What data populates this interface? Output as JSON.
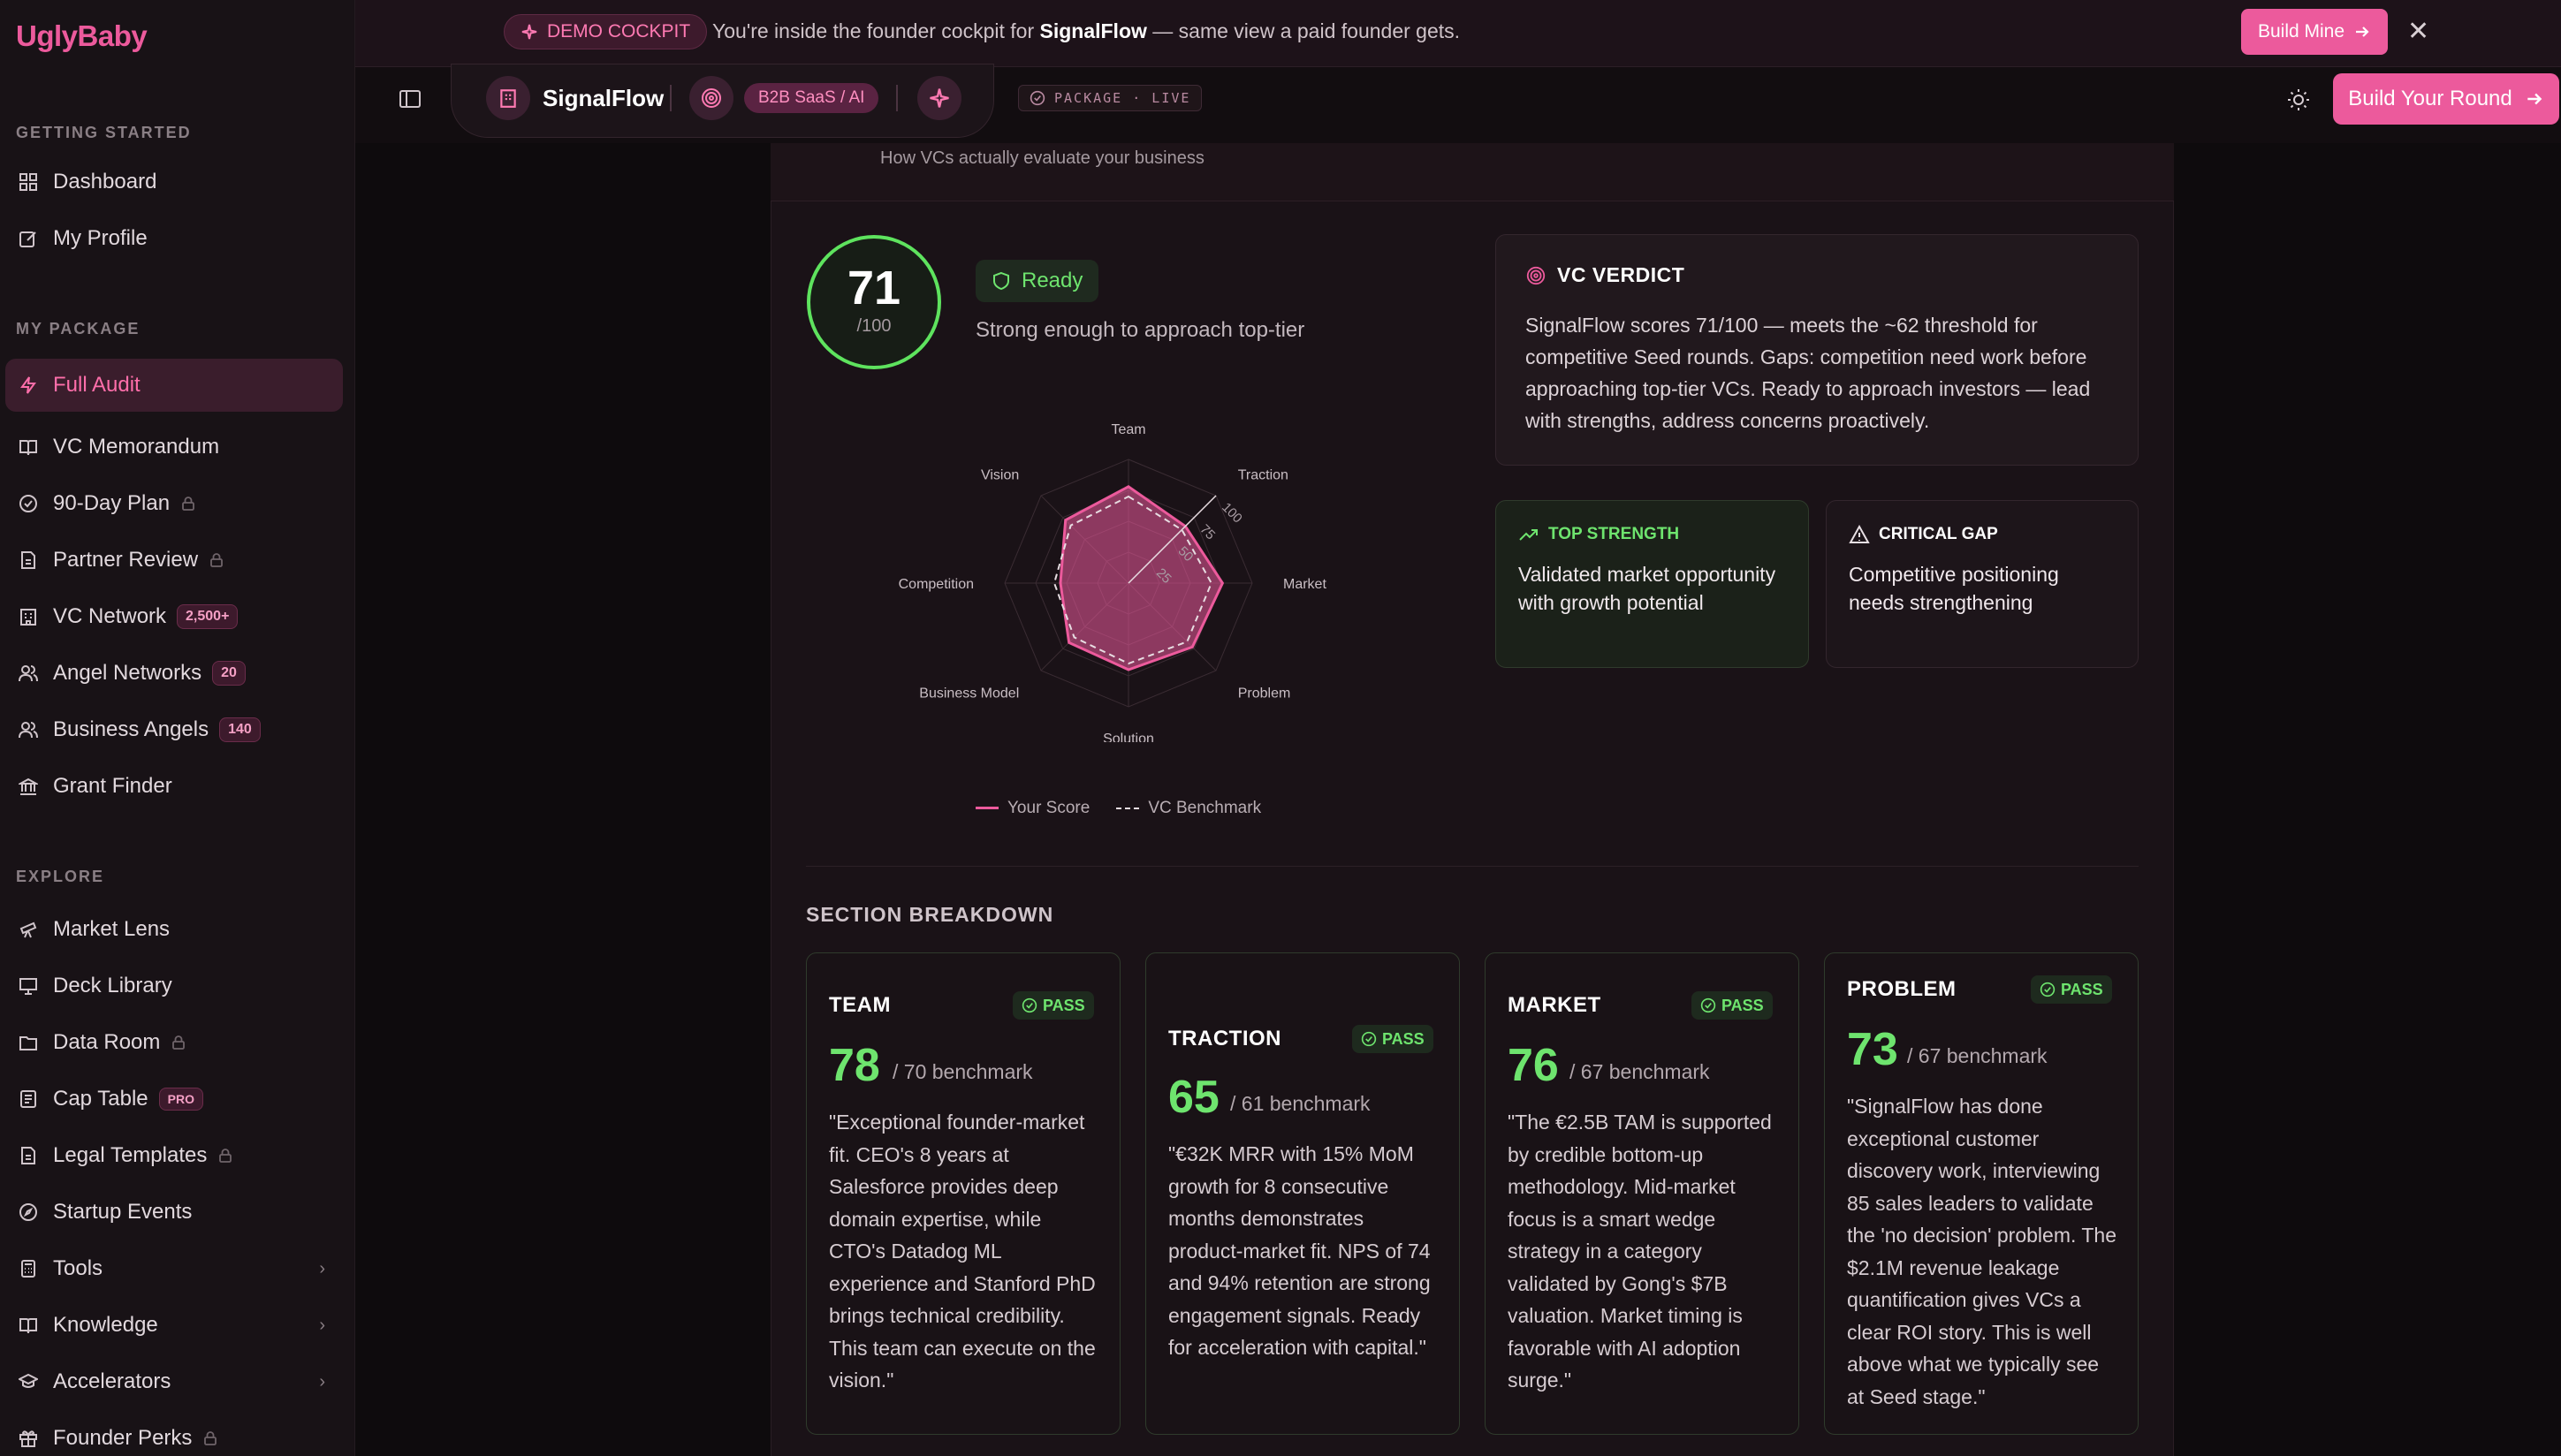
{
  "sidebar": {
    "logo": "UglyBaby",
    "sections": {
      "getting_started": "GETTING STARTED",
      "my_package": "MY PACKAGE",
      "explore": "EXPLORE"
    },
    "items": [
      {
        "label": "Dashboard"
      },
      {
        "label": "My Profile"
      },
      {
        "label": "Full Audit"
      },
      {
        "label": "VC Memorandum"
      },
      {
        "label": "90-Day Plan"
      },
      {
        "label": "Partner Review"
      },
      {
        "label": "VC Network",
        "badge": "2,500+"
      },
      {
        "label": "Angel Networks",
        "badge": "20"
      },
      {
        "label": "Business Angels",
        "badge": "140"
      },
      {
        "label": "Grant Finder"
      },
      {
        "label": "Market Lens"
      },
      {
        "label": "Deck Library"
      },
      {
        "label": "Data Room"
      },
      {
        "label": "Cap Table",
        "badge": "PRO"
      },
      {
        "label": "Legal Templates"
      },
      {
        "label": "Startup Events"
      },
      {
        "label": "Tools"
      },
      {
        "label": "Knowledge"
      },
      {
        "label": "Accelerators"
      },
      {
        "label": "Founder Perks"
      }
    ]
  },
  "banner": {
    "pill": "DEMO COCKPIT",
    "text_before": "You're inside the founder cockpit for ",
    "company": "SignalFlow",
    "text_after": " — same view a paid founder gets.",
    "button": "Build Mine"
  },
  "header": {
    "company": "SignalFlow",
    "sector": "B2B SaaS / AI",
    "package": "PACKAGE · LIVE",
    "cta": "Build Your Round"
  },
  "audit": {
    "subtitle": "How VCs actually evaluate your business",
    "score": "71",
    "score_den": "/100",
    "score_value": 71,
    "status": "Ready",
    "status_desc": "Strong enough to approach top-tier",
    "legend_score": "Your Score",
    "legend_bench": "VC Benchmark",
    "verdict_title": "VC VERDICT",
    "verdict_text": "SignalFlow scores 71/100 — meets the ~62 threshold for competitive Seed rounds. Gaps: competition need work before approaching top-tier VCs. Ready to approach investors — lead with strengths, address concerns proactively.",
    "strength_label": "TOP STRENGTH",
    "strength_text": "Validated market opportunity with growth potential",
    "gap_label": "CRITICAL GAP",
    "gap_text": "Competitive positioning needs strengthening"
  },
  "radar": {
    "axes": [
      "Team",
      "Traction",
      "Market",
      "Problem",
      "Solution",
      "Business Model",
      "Competition",
      "Vision"
    ],
    "score": [
      78,
      65,
      76,
      73,
      70,
      68,
      55,
      72
    ],
    "benchmark": [
      70,
      61,
      67,
      67,
      65,
      62,
      60,
      66
    ],
    "ticks": [
      "25",
      "50",
      "75",
      "100"
    ],
    "score_color": "#ec5a9c",
    "bench_color": "#e8dde2"
  },
  "breakdown": {
    "title": "SECTION BREAKDOWN",
    "pass_label": "PASS",
    "cards": [
      {
        "name": "TEAM",
        "score": "78",
        "bench": "/ 70 benchmark",
        "quote": "\"Exceptional founder-market fit. CEO's 8 years at Salesforce provides deep domain expertise, while CTO's Datadog ML experience and Stanford PhD brings technical credibility. This team can execute on the vision.\""
      },
      {
        "name": "TRACTION",
        "score": "65",
        "bench": "/ 61 benchmark",
        "quote": "\"€32K MRR with 15% MoM growth for 8 consecutive months demonstrates product-market fit. NPS of 74 and 94% retention are strong engagement signals. Ready for acceleration with capital.\""
      },
      {
        "name": "MARKET",
        "score": "76",
        "bench": "/ 67 benchmark",
        "quote": "\"The €2.5B TAM is supported by credible bottom-up methodology. Mid-market focus is a smart wedge strategy in a category validated by Gong's $7B valuation. Market timing is favorable with AI adoption surge.\""
      },
      {
        "name": "PROBLEM",
        "score": "73",
        "bench": "/ 67 benchmark",
        "quote": "\"SignalFlow has done exceptional customer discovery work, interviewing 85 sales leaders to validate the 'no decision' problem. The $2.1M revenue leakage quantification gives VCs a clear ROI story. This is well above what we typically see at Seed stage.\""
      }
    ]
  },
  "colors": {
    "accent": "#ec5a9c",
    "pass": "#6ee46e"
  }
}
